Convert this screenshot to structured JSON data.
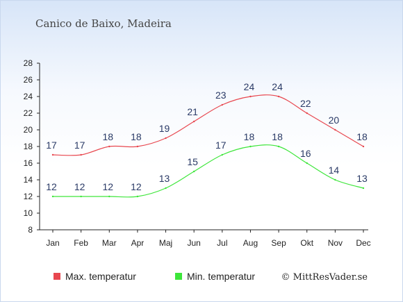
{
  "title": "Canico de Baixo, Madeira",
  "credit": "© MittResVader.se",
  "colors": {
    "max": "#e8474f",
    "min": "#3de63a"
  },
  "chart_data": {
    "type": "line",
    "categories": [
      "Jan",
      "Feb",
      "Mar",
      "Apr",
      "Maj",
      "Jun",
      "Jul",
      "Aug",
      "Sep",
      "Okt",
      "Nov",
      "Dec"
    ],
    "series": [
      {
        "name": "Max. temperatur",
        "color": "#e8474f",
        "values": [
          17,
          17,
          18,
          18,
          19,
          21,
          23,
          24,
          24,
          22,
          20,
          18
        ]
      },
      {
        "name": "Min. temperatur",
        "color": "#3de63a",
        "values": [
          12,
          12,
          12,
          12,
          13,
          15,
          17,
          18,
          18,
          16,
          14,
          13
        ]
      }
    ],
    "ylim": [
      8,
      28
    ],
    "yticks": [
      "8",
      "10",
      "12",
      "14",
      "16",
      "18",
      "20",
      "22",
      "24",
      "26",
      "28"
    ],
    "legend": "bottom-left",
    "grid": false
  }
}
